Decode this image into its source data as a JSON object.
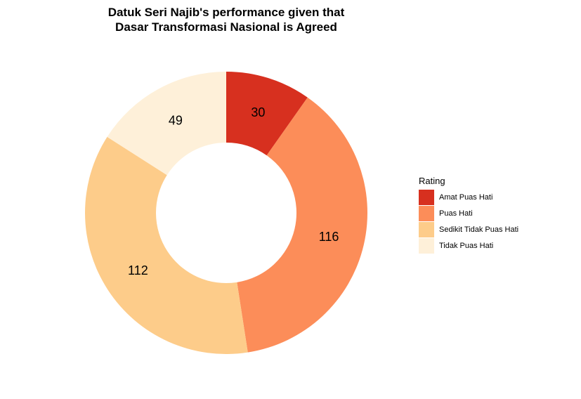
{
  "chart_data": {
    "type": "pie",
    "title_lines": [
      "Datuk Seri Najib's performance given that",
      "Dasar Transformasi Nasional is Agreed"
    ],
    "legend_title": "Rating",
    "legend_position": "right",
    "categories": [
      "Amat Puas Hati",
      "Puas Hati",
      "Sedikit Tidak Puas Hati",
      "Tidak Puas Hati"
    ],
    "values": [
      30,
      116,
      112,
      49
    ],
    "colors": [
      "#D7301F",
      "#FC8D59",
      "#FDCC8A",
      "#FEF0D9"
    ],
    "donut": true
  }
}
